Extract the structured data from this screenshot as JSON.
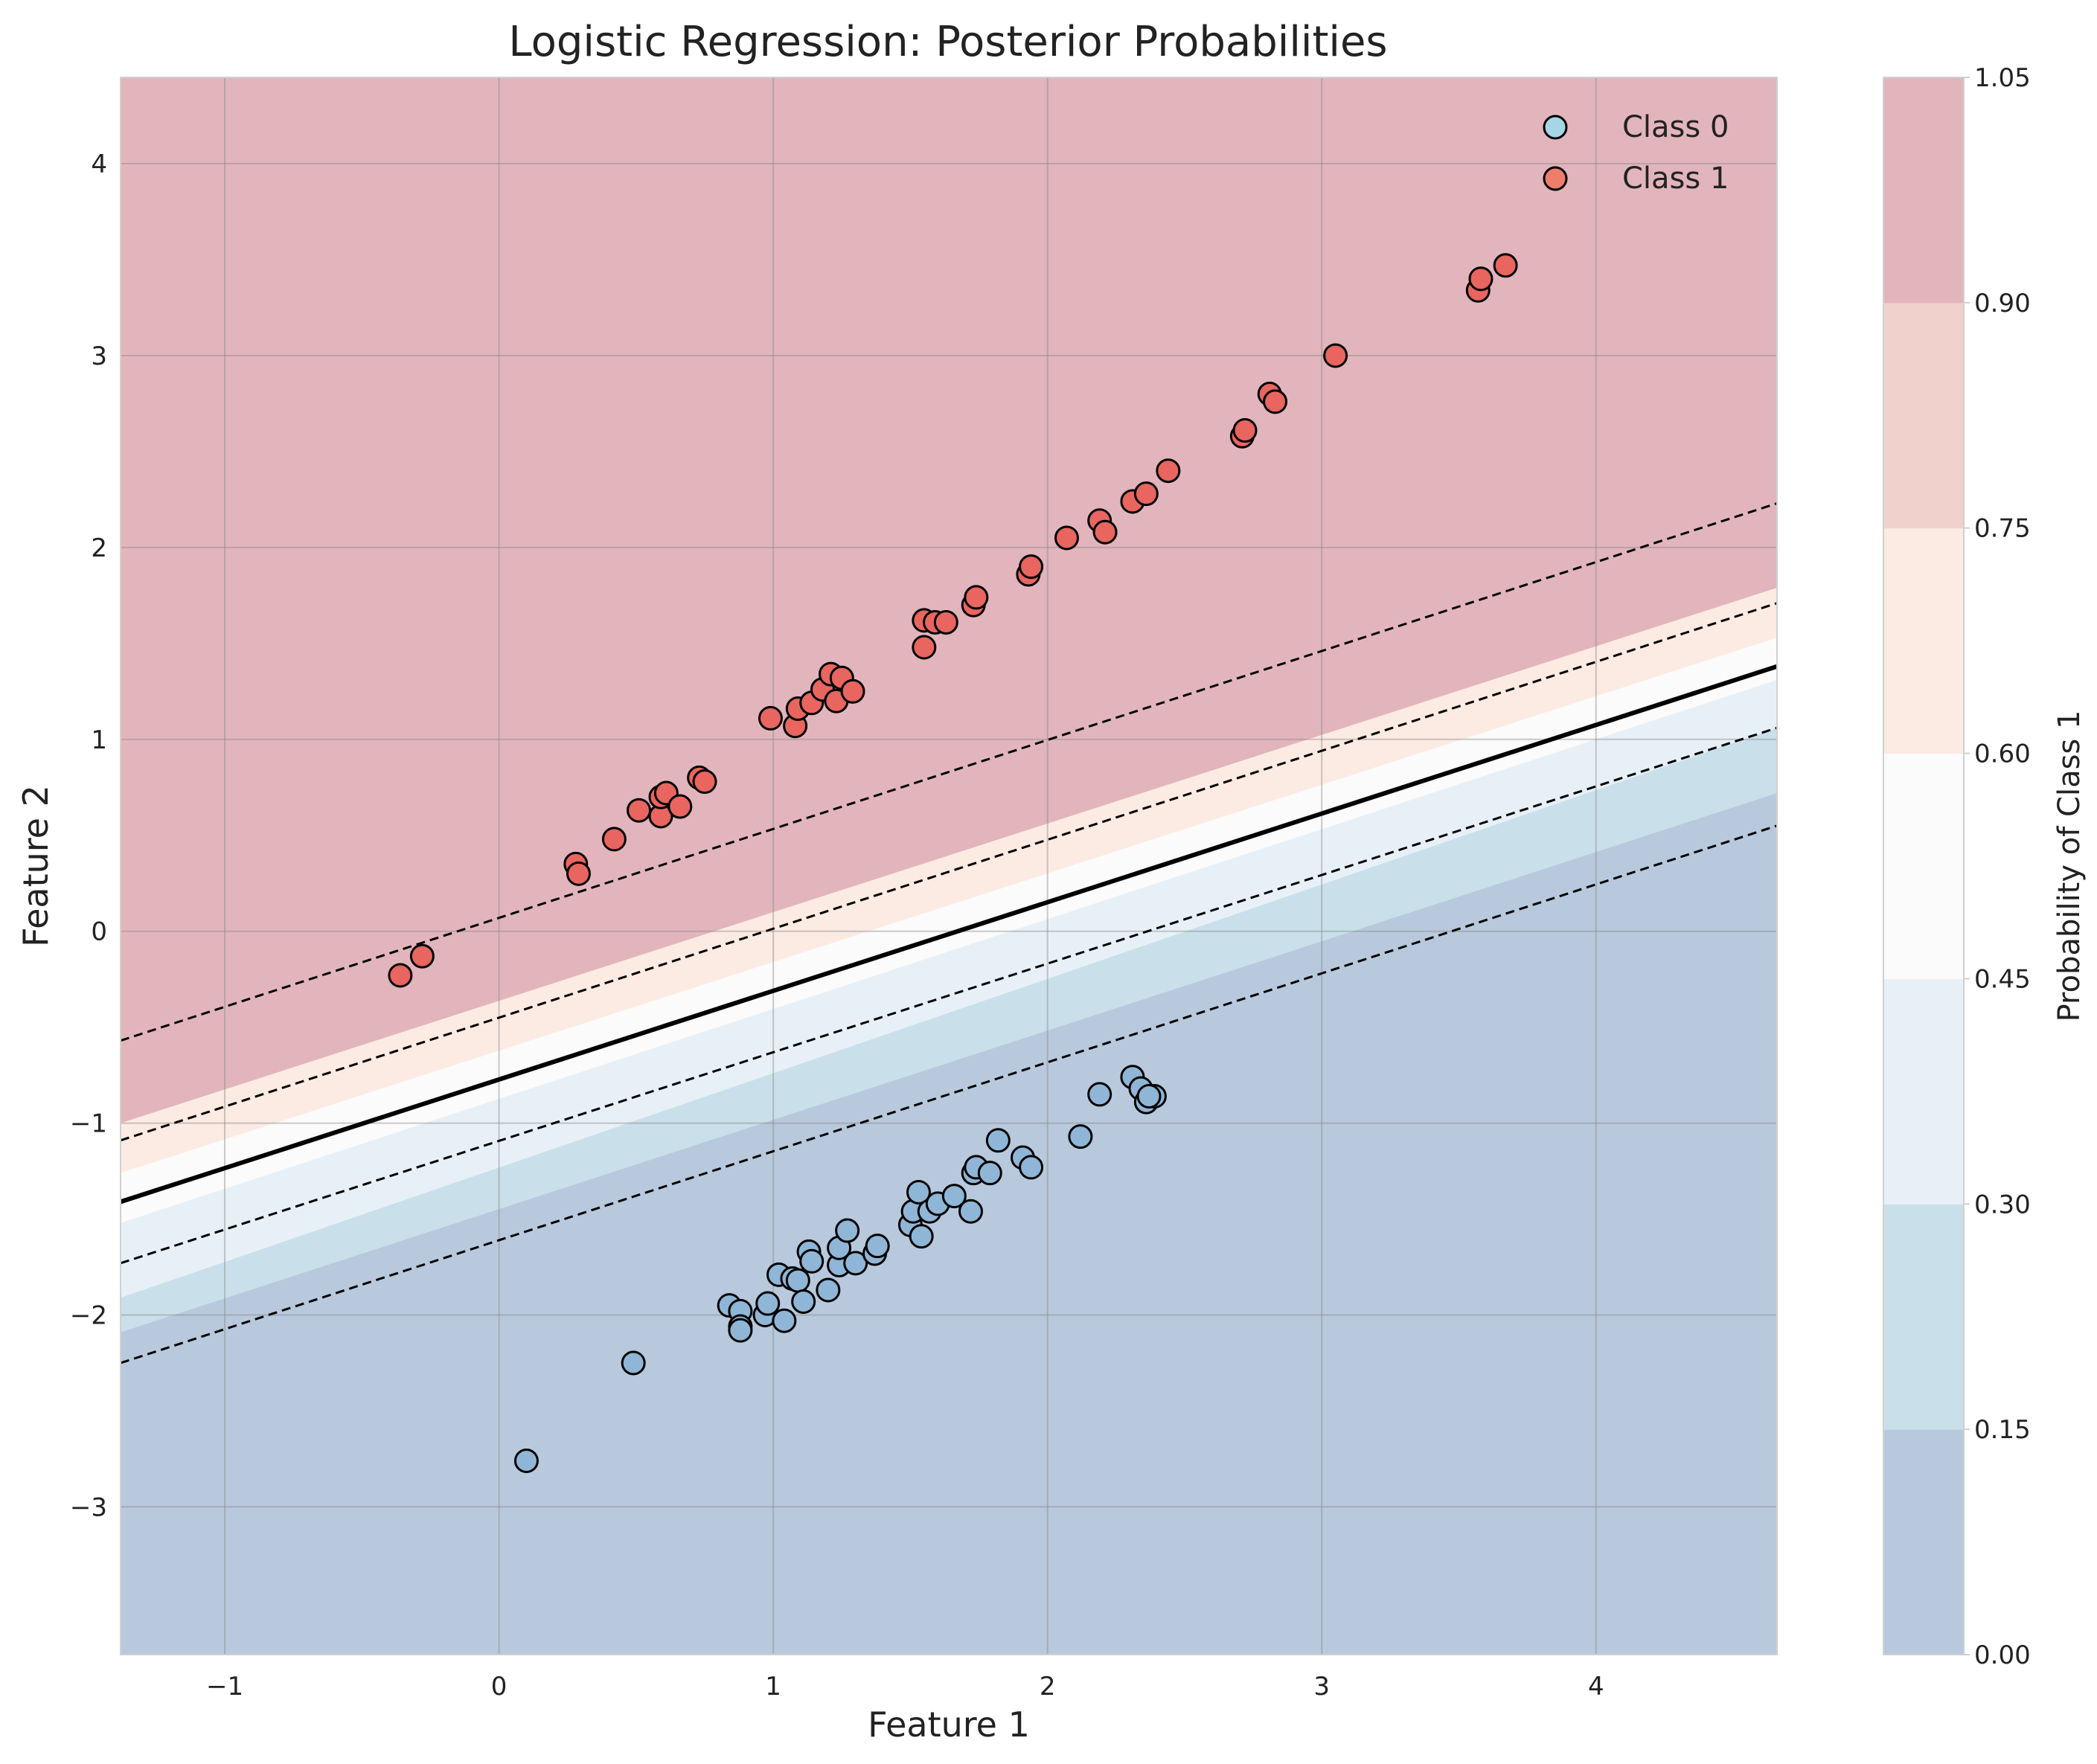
{
  "chart_data": {
    "type": "scatter",
    "title": "Logistic Regression: Posterior Probabilities",
    "xlabel": "Feature 1",
    "ylabel": "Feature 2",
    "xlim": [
      -1.38,
      4.66
    ],
    "ylim": [
      -3.77,
      4.45
    ],
    "xticks": [
      -1,
      0,
      1,
      2,
      3,
      4
    ],
    "yticks": [
      -3,
      -2,
      -1,
      0,
      1,
      2,
      3,
      4
    ],
    "xtick_labels": [
      "−1",
      "0",
      "1",
      "2",
      "3",
      "4"
    ],
    "ytick_labels": [
      "−3",
      "−2",
      "−1",
      "0",
      "1",
      "2",
      "3",
      "4"
    ],
    "grid": true,
    "legend": {
      "placement": "top-right",
      "entries": [
        {
          "label": "Class 0",
          "color": "#a6d6e6"
        },
        {
          "label": "Class 1",
          "color": "#ef7d6a"
        }
      ]
    },
    "decision_boundary": {
      "points": [
        [
          -1.38,
          -1.41
        ],
        [
          4.66,
          1.38
        ]
      ],
      "color": "#000000"
    },
    "contour_lines": [
      {
        "points": [
          [
            -1.38,
            -0.57
          ],
          [
            4.66,
            2.23
          ]
        ]
      },
      {
        "points": [
          [
            -1.38,
            -1.09
          ],
          [
            4.66,
            1.71
          ]
        ]
      },
      {
        "points": [
          [
            -1.38,
            -1.73
          ],
          [
            4.66,
            1.06
          ]
        ]
      },
      {
        "points": [
          [
            -1.38,
            -2.25
          ],
          [
            4.66,
            0.55
          ]
        ]
      }
    ],
    "probability_bands": [
      {
        "range": [
          0.0,
          0.15
        ],
        "color": "#b8c9dd",
        "upper_edge": [
          [
            -1.38,
            -2.09
          ],
          [
            4.66,
            0.72
          ]
        ]
      },
      {
        "range": [
          0.15,
          0.3
        ],
        "color": "#c9e0ea",
        "upper_edge": [
          [
            -1.38,
            -1.91
          ],
          [
            4.66,
            1.06
          ]
        ]
      },
      {
        "range": [
          0.3,
          0.45
        ],
        "color": "#e8f0f7",
        "upper_edge": [
          [
            -1.38,
            -1.52
          ],
          [
            4.66,
            1.31
          ]
        ]
      },
      {
        "range": [
          0.45,
          0.6
        ],
        "color": "#fbfbfb",
        "upper_edge": [
          [
            -1.38,
            -1.26
          ],
          [
            4.66,
            1.53
          ]
        ]
      },
      {
        "range": [
          0.6,
          0.75
        ],
        "color": "#fcebe3",
        "upper_edge": [
          [
            -1.38,
            -1.0
          ],
          [
            4.66,
            1.79
          ]
        ]
      },
      {
        "range": [
          0.75,
          0.9
        ],
        "color": "#f1d1cb",
        "upper_edge": null
      },
      {
        "range": [
          0.9,
          1.05
        ],
        "color": "#e2b5bc",
        "upper_edge": null
      }
    ],
    "colorbar": {
      "label": "Probability of Class 1",
      "ticks": [
        "0.00",
        "0.15",
        "0.30",
        "0.45",
        "0.60",
        "0.75",
        "0.90",
        "1.05"
      ],
      "colors": [
        "#b8c9dd",
        "#c9e0ea",
        "#e8f0f7",
        "#fbfbfb",
        "#fcebe3",
        "#f1d1cb",
        "#e2b5bc"
      ]
    },
    "series": [
      {
        "name": "Class 0",
        "legend_color": "#a6d6e6",
        "color": "#8fb6d6",
        "points": [
          [
            0.1,
            -2.76
          ],
          [
            0.49,
            -2.25
          ],
          [
            0.84,
            -1.95
          ],
          [
            0.88,
            -1.98
          ],
          [
            0.88,
            -2.06
          ],
          [
            0.88,
            -2.08
          ],
          [
            0.97,
            -2.0
          ],
          [
            0.98,
            -1.94
          ],
          [
            1.02,
            -1.79
          ],
          [
            1.04,
            -2.03
          ],
          [
            1.07,
            -1.81
          ],
          [
            1.09,
            -1.82
          ],
          [
            1.11,
            -1.93
          ],
          [
            1.13,
            -1.67
          ],
          [
            1.14,
            -1.72
          ],
          [
            1.2,
            -1.87
          ],
          [
            1.24,
            -1.74
          ],
          [
            1.24,
            -1.65
          ],
          [
            1.27,
            -1.56
          ],
          [
            1.3,
            -1.73
          ],
          [
            1.37,
            -1.68
          ],
          [
            1.38,
            -1.64
          ],
          [
            1.5,
            -1.53
          ],
          [
            1.51,
            -1.46
          ],
          [
            1.53,
            -1.36
          ],
          [
            1.54,
            -1.59
          ],
          [
            1.57,
            -1.46
          ],
          [
            1.6,
            -1.42
          ],
          [
            1.66,
            -1.38
          ],
          [
            1.72,
            -1.46
          ],
          [
            1.73,
            -1.26
          ],
          [
            1.74,
            -1.23
          ],
          [
            1.79,
            -1.26
          ],
          [
            1.82,
            -1.09
          ],
          [
            1.91,
            -1.18
          ],
          [
            1.94,
            -1.23
          ],
          [
            2.12,
            -1.07
          ],
          [
            2.19,
            -0.85
          ],
          [
            2.31,
            -0.76
          ],
          [
            2.34,
            -0.82
          ],
          [
            2.36,
            -0.89
          ],
          [
            2.39,
            -0.86
          ],
          [
            2.37,
            -0.86
          ]
        ]
      },
      {
        "name": "Class 1",
        "legend_color": "#ef7d6a",
        "color": "#e8665f",
        "points": [
          [
            -0.36,
            -0.23
          ],
          [
            -0.28,
            -0.13
          ],
          [
            0.28,
            0.35
          ],
          [
            0.29,
            0.3
          ],
          [
            0.42,
            0.48
          ],
          [
            0.51,
            0.63
          ],
          [
            0.59,
            0.6
          ],
          [
            0.59,
            0.7
          ],
          [
            0.61,
            0.72
          ],
          [
            0.66,
            0.65
          ],
          [
            0.73,
            0.8
          ],
          [
            0.75,
            0.78
          ],
          [
            0.99,
            1.11
          ],
          [
            1.08,
            1.07
          ],
          [
            1.09,
            1.16
          ],
          [
            1.14,
            1.19
          ],
          [
            1.18,
            1.26
          ],
          [
            1.21,
            1.34
          ],
          [
            1.23,
            1.2
          ],
          [
            1.25,
            1.32
          ],
          [
            1.29,
            1.25
          ],
          [
            1.55,
            1.48
          ],
          [
            1.55,
            1.62
          ],
          [
            1.59,
            1.61
          ],
          [
            1.63,
            1.61
          ],
          [
            1.73,
            1.7
          ],
          [
            1.74,
            1.74
          ],
          [
            1.93,
            1.86
          ],
          [
            1.94,
            1.9
          ],
          [
            2.07,
            2.05
          ],
          [
            2.19,
            2.14
          ],
          [
            2.21,
            2.08
          ],
          [
            2.31,
            2.24
          ],
          [
            2.36,
            2.28
          ],
          [
            2.44,
            2.4
          ],
          [
            2.71,
            2.58
          ],
          [
            2.72,
            2.61
          ],
          [
            2.81,
            2.8
          ],
          [
            2.83,
            2.76
          ],
          [
            3.05,
            3.0
          ],
          [
            3.57,
            3.34
          ],
          [
            3.58,
            3.4
          ],
          [
            3.67,
            3.47
          ]
        ]
      }
    ]
  }
}
